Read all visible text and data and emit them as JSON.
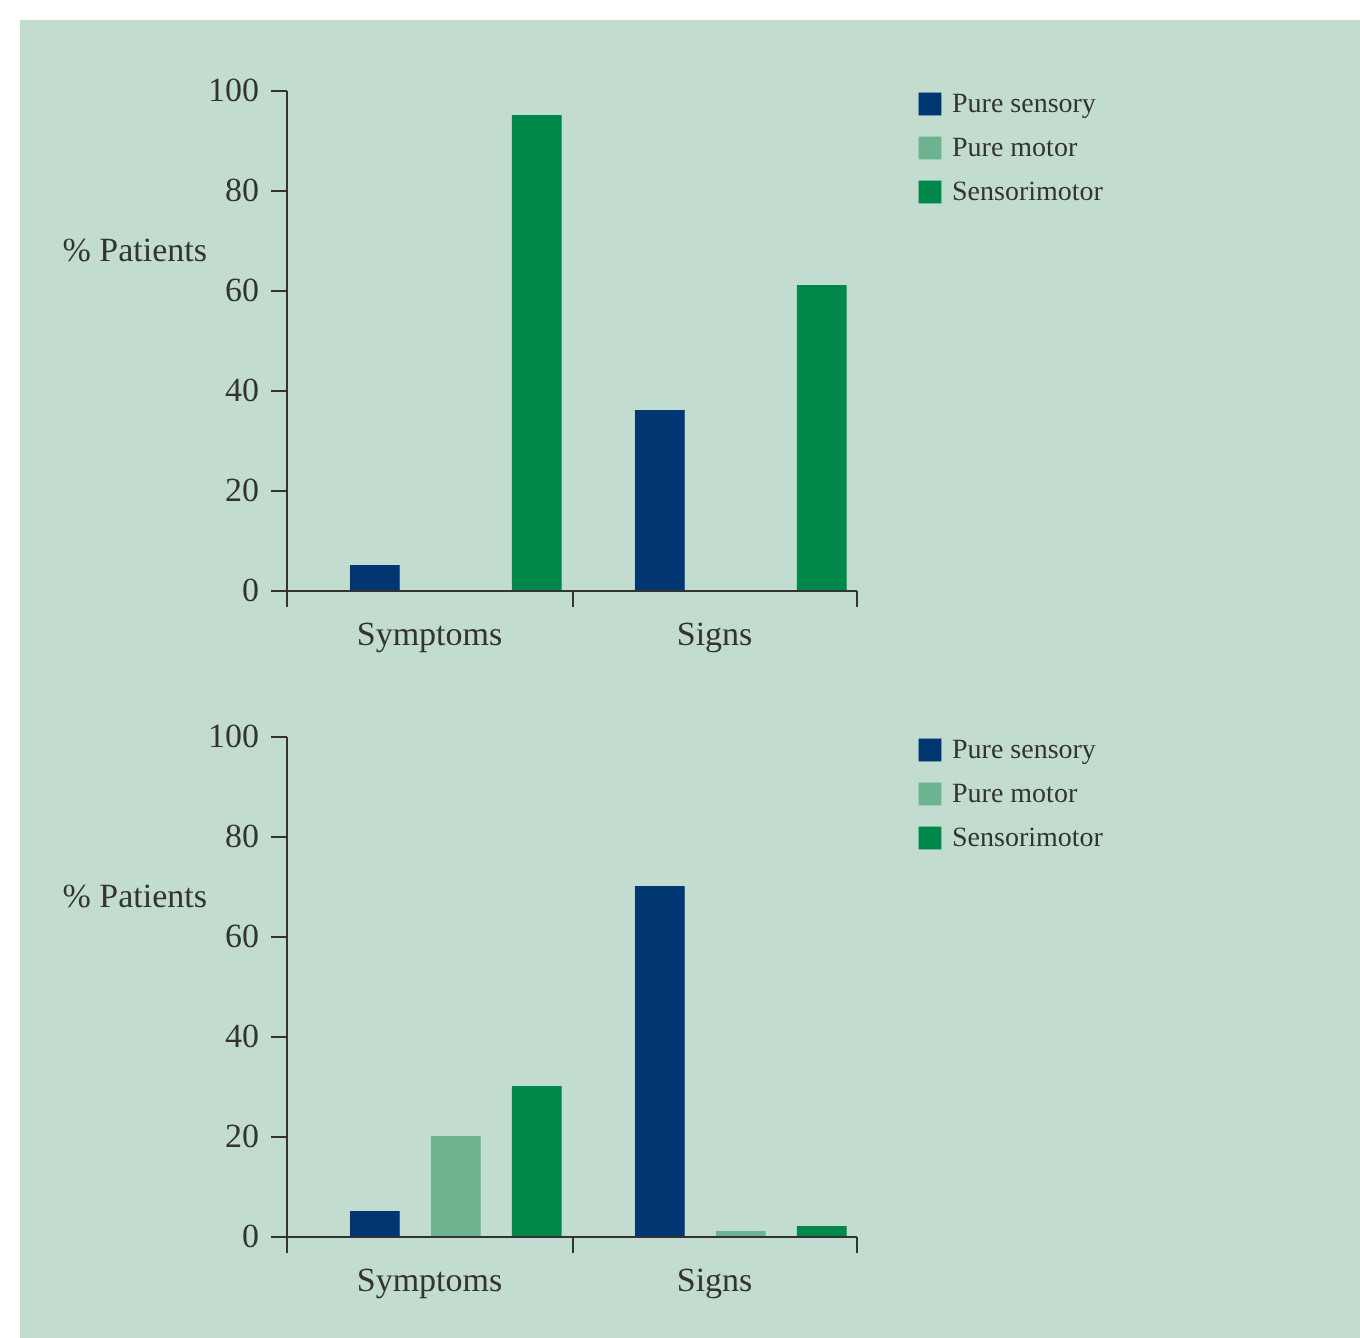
{
  "chart_data": [
    {
      "type": "bar",
      "ylabel": "% Patients",
      "categories": [
        "Symptoms",
        "Signs"
      ],
      "ylim": [
        0,
        100
      ],
      "yticks": [
        0,
        20,
        40,
        60,
        80,
        100
      ],
      "grid": false,
      "legend": "top right",
      "series": [
        {
          "name": "Pure sensory",
          "color": "#003672",
          "values": [
            5,
            36
          ]
        },
        {
          "name": "Pure motor",
          "color": "#6db38f",
          "values": [
            0,
            0
          ]
        },
        {
          "name": "Sensorimotor",
          "color": "#00884a",
          "values": [
            95,
            61
          ]
        }
      ]
    },
    {
      "type": "bar",
      "ylabel": "% Patients",
      "categories": [
        "Symptoms",
        "Signs"
      ],
      "ylim": [
        0,
        100
      ],
      "yticks": [
        0,
        20,
        40,
        60,
        80,
        100
      ],
      "grid": false,
      "legend": "top right",
      "series": [
        {
          "name": "Pure sensory",
          "color": "#003672",
          "values": [
            5,
            70
          ]
        },
        {
          "name": "Pure motor",
          "color": "#6db38f",
          "values": [
            20,
            1
          ]
        },
        {
          "name": "Sensorimotor",
          "color": "#00884a",
          "values": [
            30,
            2
          ]
        }
      ]
    }
  ]
}
